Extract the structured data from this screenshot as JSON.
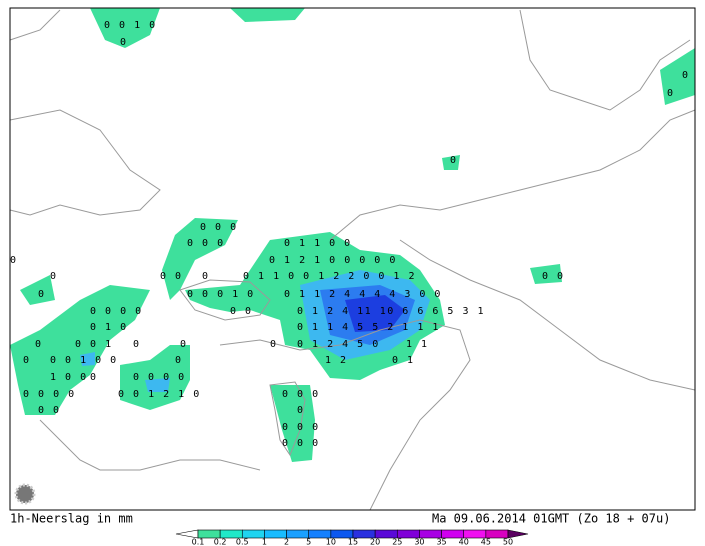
{
  "legend_title": "1h-Neerslag in mm",
  "timestamp": "Ma 09.06.2014 01GMT (Zo 18 + 07u)",
  "colorbar": {
    "labels": [
      0.1,
      0.2,
      0.5,
      1,
      2,
      5,
      10,
      15,
      20,
      25,
      30,
      35,
      40,
      45,
      50
    ]
  },
  "grid_values": [
    "0 0 1 0",
    "0",
    "0",
    "0",
    "0",
    "0 0 0",
    "0 0 0",
    "0 1 1 0 0",
    "0 1 2 1 0 0 0 0 0",
    "0",
    "0 0",
    "0",
    "0 1 1 0 0 1 2 2 0 0 1 2",
    "0",
    "0",
    "0 0 0 1 0",
    "0 1 1 2 4 4 4 4 3 0 0",
    "0 0 0 0",
    "0 0",
    "0 1 2 4 11 10 6 6 6 5 3 1",
    "0 1 0",
    "0 1 1 4 5 5 2 1 1 1",
    "0",
    "0 0 1",
    "0",
    "0",
    "0",
    "0 1 2 4 5 0",
    "1 1",
    "0",
    "0 0 1 0 0",
    "0",
    "1 2",
    "0 1",
    "1 0 0",
    "0",
    "0 0 0 0",
    "0 0 0 0",
    "0 0 1 2 1 0",
    "0 0 0",
    "0 0",
    "0",
    "0 0 0",
    "0 0 0",
    "0 0"
  ]
}
